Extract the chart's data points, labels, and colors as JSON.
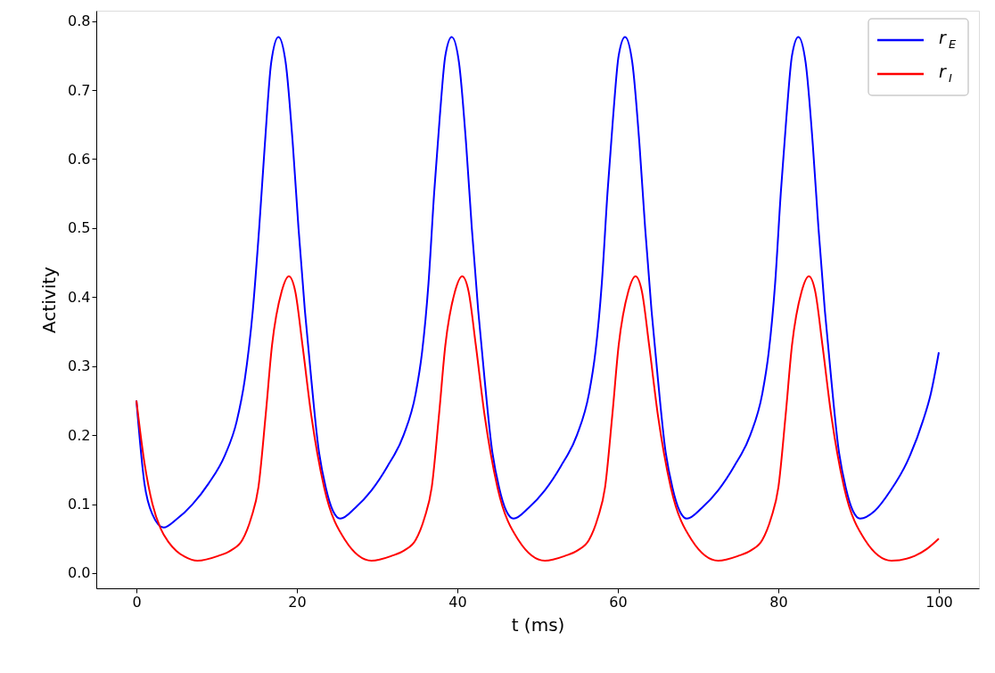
{
  "chart_data": {
    "type": "line",
    "xlabel": "t (ms)",
    "ylabel": "Activity",
    "xlim": [
      -5,
      105
    ],
    "ylim": [
      -0.022,
      0.815
    ],
    "xticks": [
      0,
      20,
      40,
      60,
      80,
      100
    ],
    "yticks": [
      {
        "value": 0,
        "label": "0.0"
      },
      0.1,
      0.2,
      0.3,
      0.4,
      0.5,
      0.6,
      0.7,
      0.8
    ],
    "grid": false,
    "legend": "top right",
    "marker": "none",
    "line_style": "solid",
    "series": [
      {
        "name": "r$_{E}$",
        "color": "#0000ff",
        "x": [
          0,
          1,
          2,
          3.4,
          5,
          7,
          9,
          11,
          12.5,
          13.5,
          14.5,
          15.3,
          16,
          16.8,
          17.7,
          18.6,
          19.5,
          20.2,
          21,
          21.8,
          22.7,
          23.6,
          24.5,
          25.4,
          27.3,
          29.3,
          31.3,
          33.3,
          34.8,
          35.6,
          36.4,
          37.1,
          37.8,
          38.5,
          39.3,
          40.2,
          41.1,
          41.8,
          42.6,
          43.4,
          44.3,
          45.2,
          46.1,
          47.0,
          48.9,
          50.9,
          52.9,
          54.9,
          56.4,
          57.2,
          58.0,
          58.7,
          59.4,
          60.1,
          60.9,
          61.8,
          62.7,
          63.4,
          64.2,
          65.0,
          65.9,
          66.8,
          67.7,
          68.6,
          70.5,
          72.5,
          74.5,
          76.5,
          78.0,
          78.8,
          79.6,
          80.3,
          81.0,
          81.7,
          82.5,
          83.4,
          84.3,
          85.0,
          85.8,
          86.6,
          87.5,
          88.4,
          89.3,
          90.2,
          92,
          94,
          96,
          98,
          99,
          100
        ],
        "values": [
          0.25,
          0.13,
          0.085,
          0.066,
          0.078,
          0.1,
          0.13,
          0.17,
          0.22,
          0.28,
          0.38,
          0.5,
          0.62,
          0.74,
          0.777,
          0.74,
          0.62,
          0.5,
          0.38,
          0.28,
          0.18,
          0.124,
          0.09,
          0.079,
          0.095,
          0.12,
          0.155,
          0.2,
          0.26,
          0.32,
          0.42,
          0.55,
          0.66,
          0.75,
          0.777,
          0.74,
          0.62,
          0.5,
          0.38,
          0.28,
          0.18,
          0.124,
          0.09,
          0.079,
          0.095,
          0.12,
          0.155,
          0.2,
          0.26,
          0.32,
          0.42,
          0.55,
          0.66,
          0.75,
          0.777,
          0.74,
          0.62,
          0.5,
          0.38,
          0.28,
          0.18,
          0.124,
          0.09,
          0.079,
          0.095,
          0.12,
          0.155,
          0.2,
          0.26,
          0.32,
          0.42,
          0.55,
          0.66,
          0.75,
          0.777,
          0.74,
          0.62,
          0.5,
          0.38,
          0.28,
          0.18,
          0.124,
          0.09,
          0.079,
          0.09,
          0.12,
          0.16,
          0.22,
          0.26,
          0.32
        ]
      },
      {
        "name": "r$_{I}$",
        "color": "#ff0000",
        "x": [
          0,
          1,
          2,
          3,
          4,
          5,
          6,
          7.6,
          10.2,
          11.8,
          13.2,
          14.3,
          15.2,
          16.1,
          16.9,
          18.1,
          19.0,
          19.8,
          20.7,
          21.8,
          23.4,
          26.0,
          29.3,
          31.8,
          33.4,
          34.8,
          35.9,
          36.8,
          37.7,
          38.5,
          39.7,
          40.6,
          41.4,
          42.3,
          43.4,
          45.0,
          47.6,
          50.9,
          53.4,
          55.0,
          56.4,
          57.5,
          58.4,
          59.3,
          60.1,
          61.3,
          62.2,
          63.0,
          63.9,
          65.0,
          66.6,
          69.2,
          72.5,
          75.0,
          76.6,
          78.0,
          79.1,
          80.0,
          80.9,
          81.7,
          82.9,
          83.8,
          84.6,
          85.5,
          86.6,
          88.2,
          90.8,
          94.1,
          97,
          98.5,
          100
        ],
        "values": [
          0.25,
          0.16,
          0.1,
          0.065,
          0.045,
          0.032,
          0.024,
          0.018,
          0.025,
          0.033,
          0.048,
          0.08,
          0.124,
          0.228,
          0.33,
          0.408,
          0.43,
          0.408,
          0.33,
          0.228,
          0.124,
          0.048,
          0.018,
          0.025,
          0.033,
          0.048,
          0.08,
          0.124,
          0.228,
          0.33,
          0.408,
          0.43,
          0.408,
          0.33,
          0.228,
          0.124,
          0.048,
          0.018,
          0.025,
          0.033,
          0.048,
          0.08,
          0.124,
          0.228,
          0.33,
          0.408,
          0.43,
          0.408,
          0.33,
          0.228,
          0.124,
          0.048,
          0.018,
          0.025,
          0.033,
          0.048,
          0.08,
          0.124,
          0.228,
          0.33,
          0.408,
          0.43,
          0.408,
          0.33,
          0.228,
          0.124,
          0.048,
          0.018,
          0.025,
          0.035,
          0.05
        ]
      }
    ]
  }
}
